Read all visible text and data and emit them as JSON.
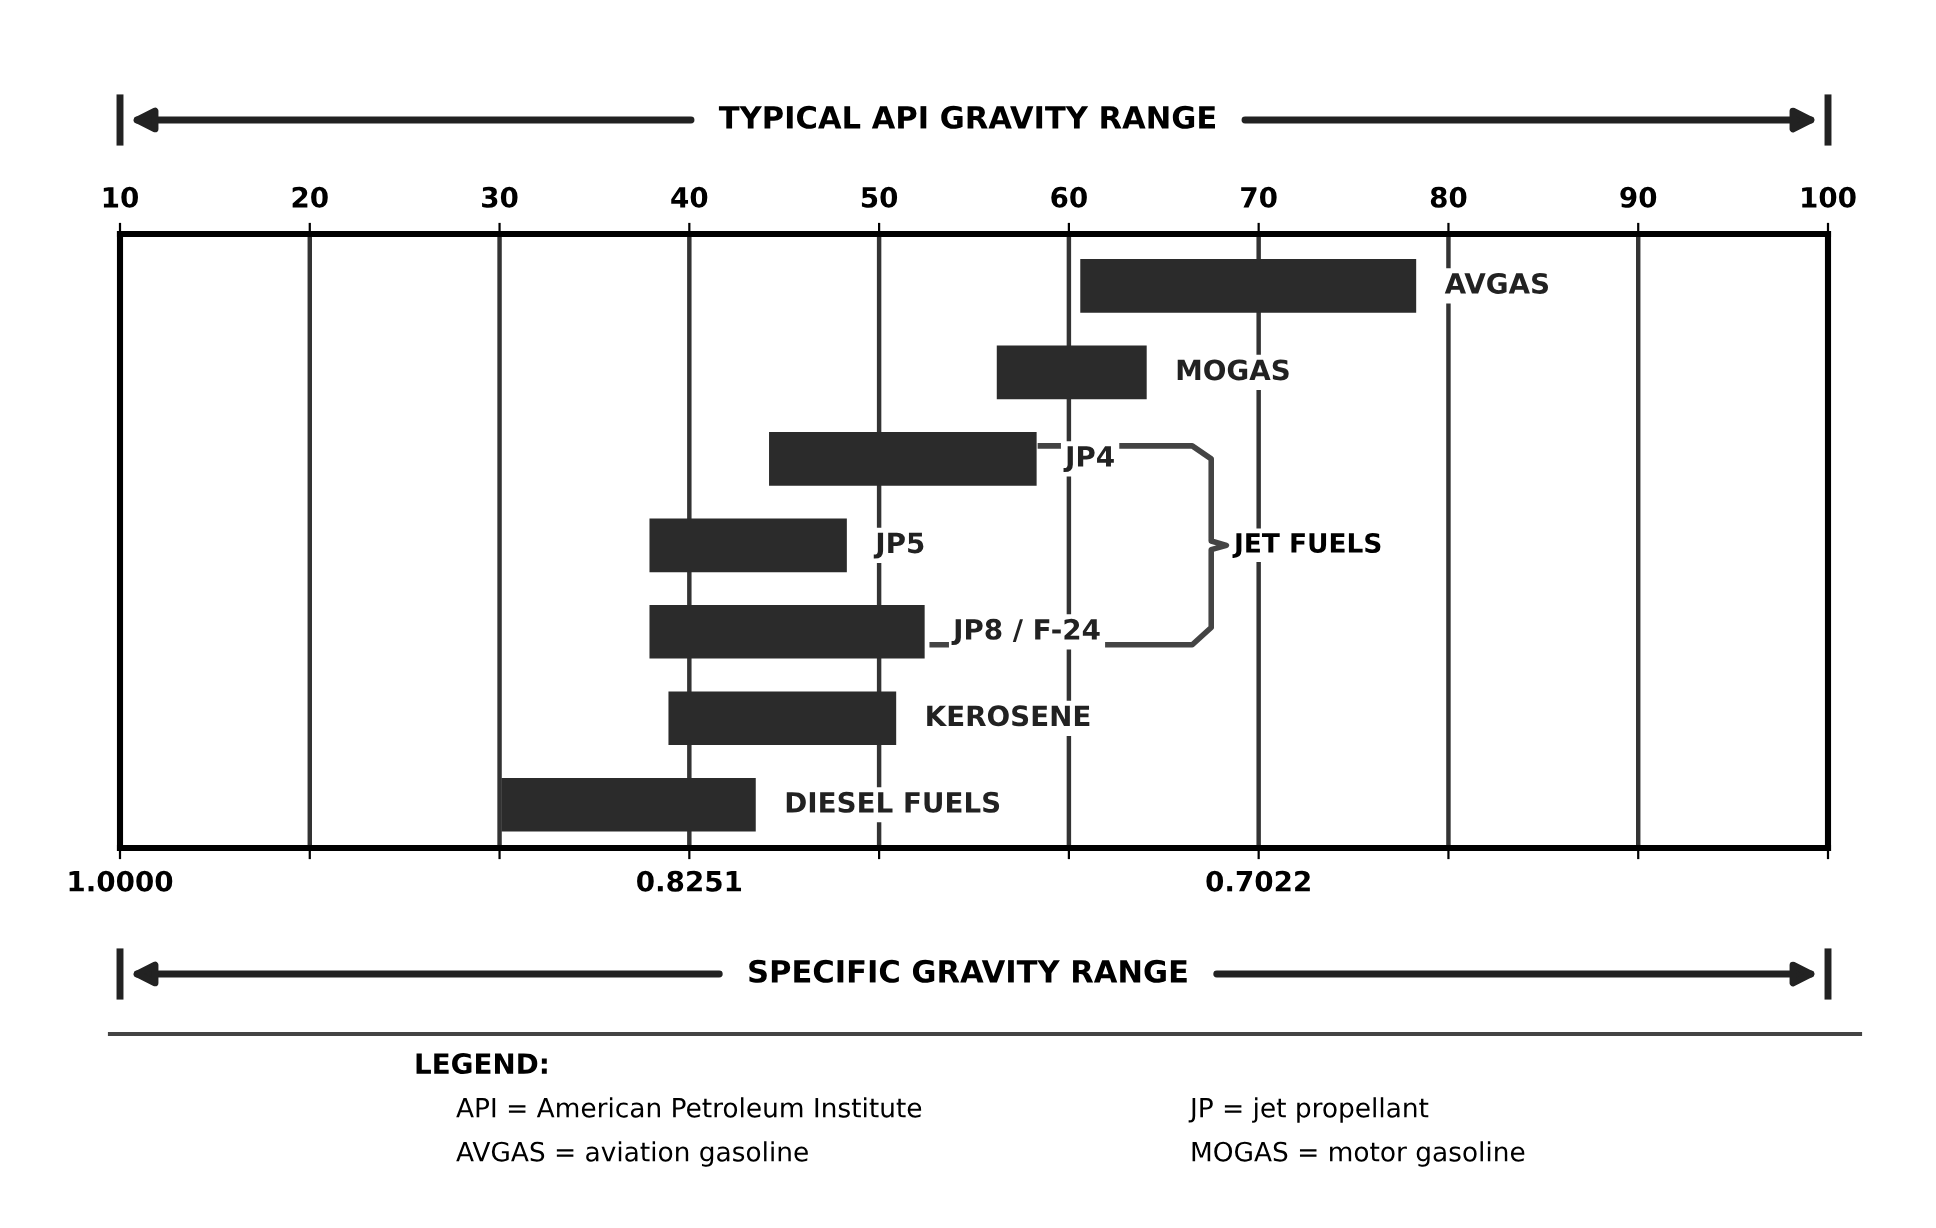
{
  "chart_data": {
    "type": "bar",
    "orientation": "horizontal",
    "xlabel": "TYPICAL API GRAVITY RANGE",
    "categories": [
      "AVGAS",
      "MOGAS",
      "JP4",
      "JP5",
      "JP8 / F-24",
      "KEROSENE",
      "DIESEL FUELS"
    ],
    "base": [
      60.6,
      56.2,
      44.2,
      37.9,
      37.9,
      38.9,
      30.1
    ],
    "values": [
      17.7,
      7.9,
      14.1,
      10.4,
      14.5,
      12.0,
      13.4
    ],
    "color": "#2b2b2b",
    "xlim": [
      10,
      100
    ],
    "xticks": [
      10,
      20,
      30,
      40,
      50,
      60,
      70,
      80,
      90,
      100
    ],
    "grid": "x",
    "annotations": [
      "JET FUELS",
      "SPECIFIC GRAVITY RANGE",
      "LEGEND:",
      "API = American Petroleum Institute",
      "AVGAS = aviation gasoline",
      "JP = jet propellant",
      "MOGAS = motor gasoline",
      "1.0000",
      "0.8251",
      "0.7022"
    ]
  }
}
